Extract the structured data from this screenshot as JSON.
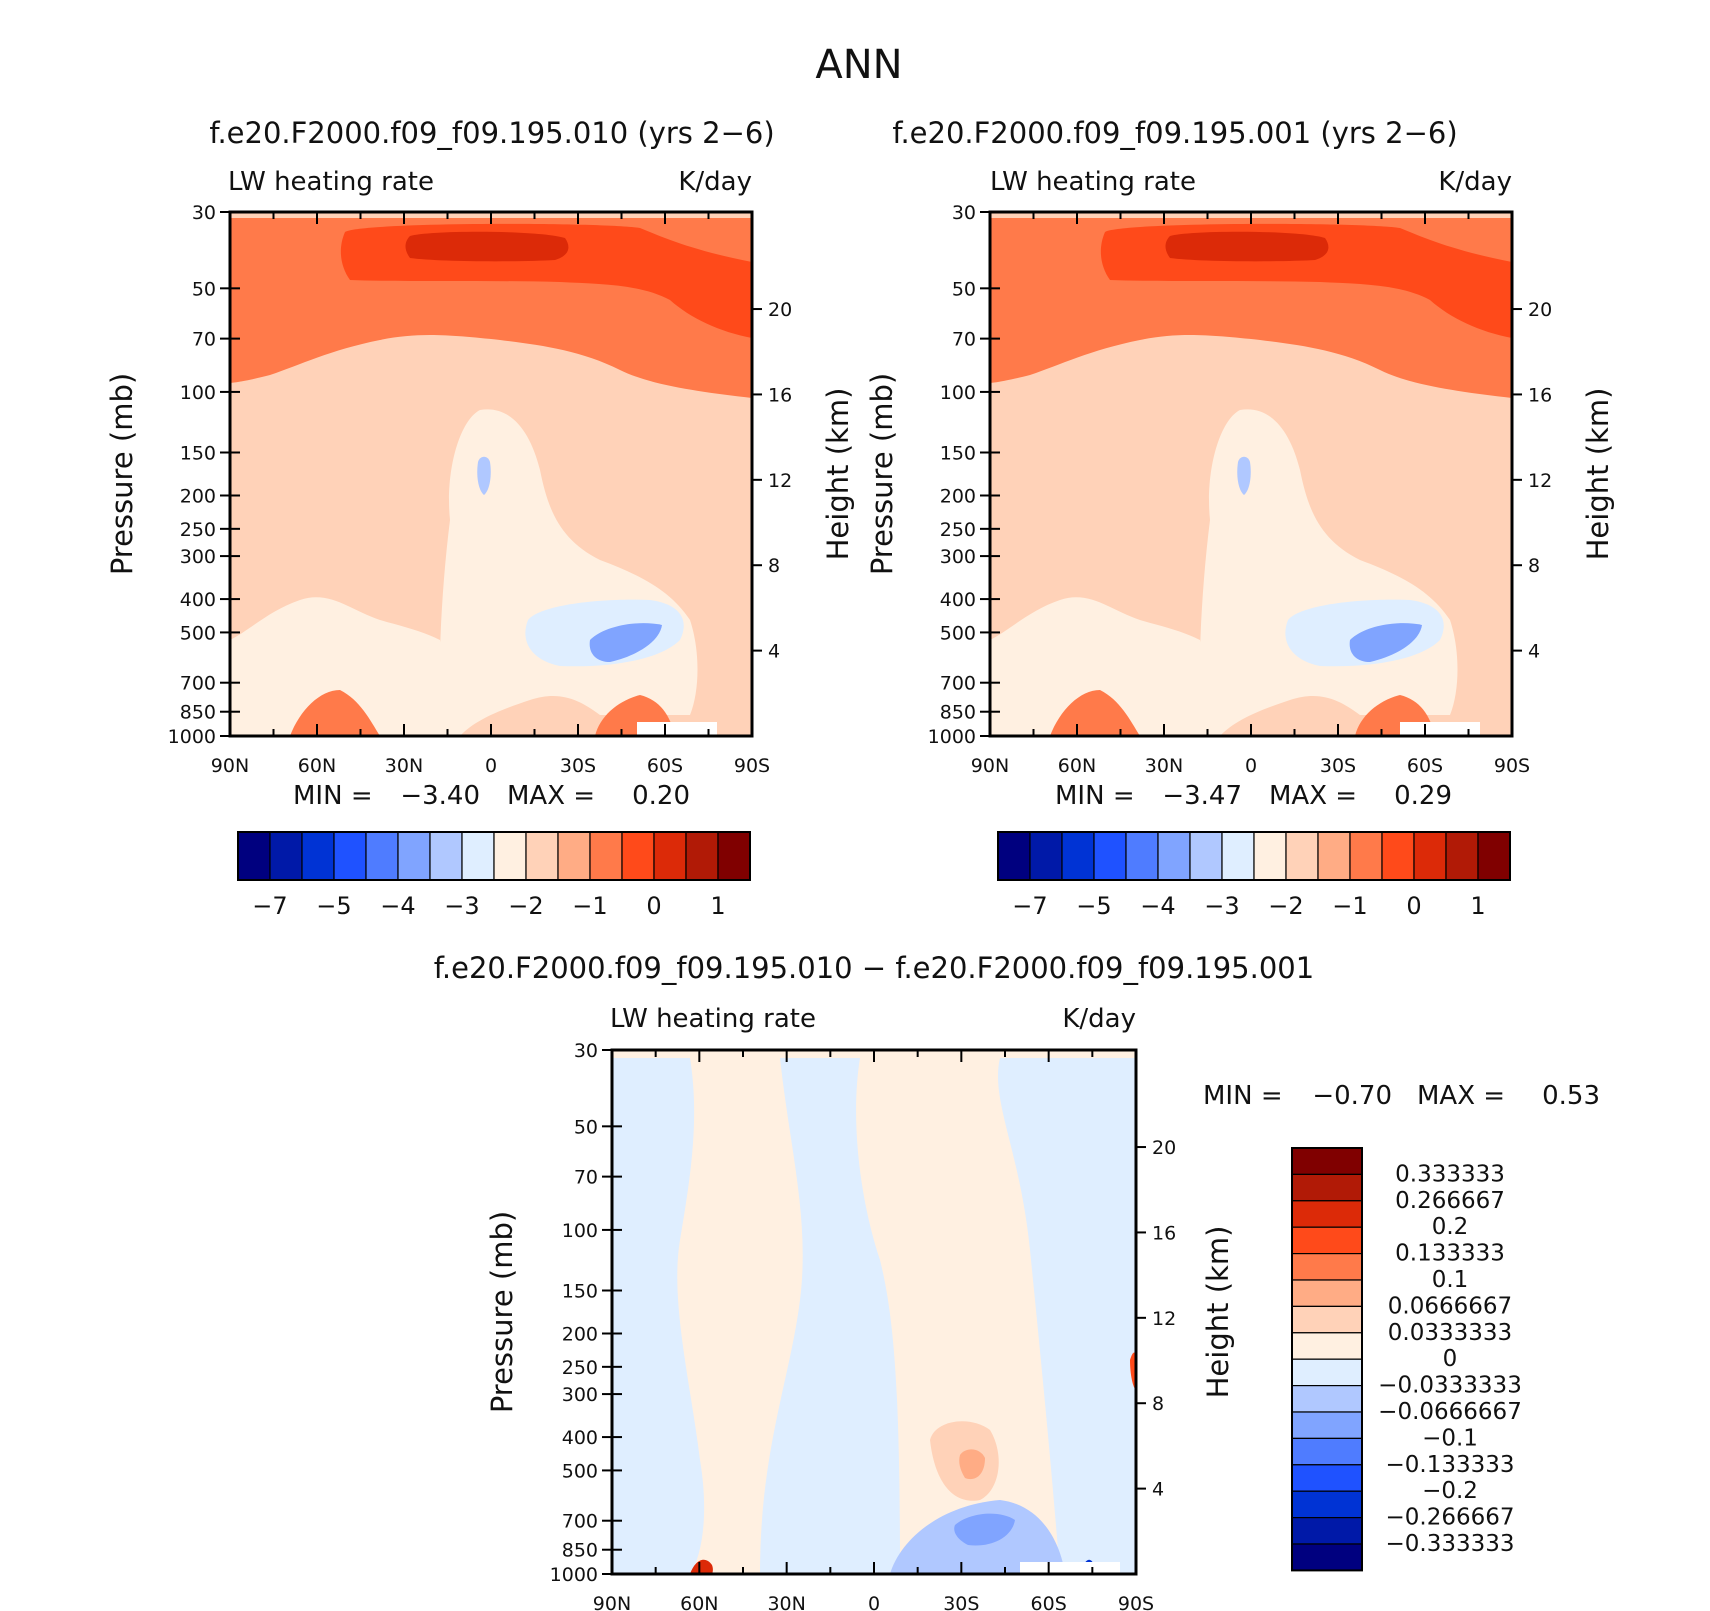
{
  "figure_title": "ANN",
  "colors": {
    "abs": [
      "#00007f",
      "#0019a8",
      "#0033d4",
      "#1f52ff",
      "#4f7cff",
      "#80a4ff",
      "#b0c8ff",
      "#dfeeff",
      "#fff0e1",
      "#ffd2b8",
      "#ffac85",
      "#ff7a4a",
      "#ff4a1a",
      "#dc2a08",
      "#b11a06",
      "#800000"
    ],
    "diff": [
      "#00007f",
      "#0019a8",
      "#0033d4",
      "#1f52ff",
      "#4f7cff",
      "#80a4ff",
      "#b0c8ff",
      "#dfeeff",
      "#fff0e1",
      "#ffd2b8",
      "#ffac85",
      "#ff7a4a",
      "#ff4a1a",
      "#dc2a08",
      "#b11a06",
      "#800000"
    ]
  },
  "panels": [
    {
      "title": "f.e20.F2000.f09_f09.195.010 (yrs 2−6)",
      "left_label": "LW heating rate",
      "right_label": "K/day",
      "stats": {
        "min_label": "MIN =",
        "min_value": "−3.40",
        "max_label": "MAX =",
        "max_value": "0.20"
      }
    },
    {
      "title": "f.e20.F2000.f09_f09.195.001 (yrs 2−6)",
      "left_label": "LW heating rate",
      "right_label": "K/day",
      "stats": {
        "min_label": "MIN =",
        "min_value": "−3.47",
        "max_label": "MAX =",
        "max_value": "0.29"
      }
    },
    {
      "title": "f.e20.F2000.f09_f09.195.010 − f.e20.F2000.f09_f09.195.001",
      "left_label": "LW heating rate",
      "right_label": "K/day",
      "stats": {
        "min_label": "MIN =",
        "min_value": "−0.70",
        "max_label": "MAX =",
        "max_value": "0.53"
      }
    }
  ],
  "axes": {
    "ylabel": "Pressure (mb)",
    "y2label": "Height (km)",
    "pressure_ticks": [
      "30",
      "50",
      "70",
      "100",
      "150",
      "200",
      "250",
      "300",
      "400",
      "500",
      "700",
      "850",
      "1000"
    ],
    "height_ticks": [
      "20",
      "16",
      "12",
      "8",
      "4"
    ],
    "lat_ticks": [
      "90N",
      "60N",
      "30N",
      "0",
      "30S",
      "60S",
      "90S"
    ]
  },
  "colorbar_abs": {
    "labels": [
      "−7",
      "−5",
      "−4",
      "−3",
      "−2",
      "−1",
      "0",
      "1"
    ]
  },
  "colorbar_diff": {
    "labels": [
      "0.333333",
      "0.266667",
      "0.2",
      "0.133333",
      "0.1",
      "0.0666667",
      "0.0333333",
      "0",
      "−0.0333333",
      "−0.0666667",
      "−0.1",
      "−0.133333",
      "−0.2",
      "−0.266667",
      "−0.333333"
    ]
  },
  "chart_data": [
    {
      "type": "heatmap",
      "title": "f.e20.F2000.f09_f09.195.010 (yrs 2−6)",
      "subtitle": "LW heating rate  K/day",
      "x_categories": [
        "90N",
        "60N",
        "30N",
        "0",
        "30S",
        "60S",
        "90S"
      ],
      "y_categories": [
        "30",
        "50",
        "70",
        "100",
        "150",
        "200",
        "250",
        "300",
        "400",
        "500",
        "700",
        "850",
        "1000"
      ],
      "xlim": [
        90,
        -90
      ],
      "ylim": [
        1000,
        30
      ],
      "y_scale": "log",
      "ylabel": "Pressure (mb)",
      "y2label": "Height (km)",
      "min": -3.4,
      "max": 0.2,
      "colorbar_levels": [
        -7,
        -5,
        -4,
        -3,
        -2,
        -1,
        0,
        1
      ]
    },
    {
      "type": "heatmap",
      "title": "f.e20.F2000.f09_f09.195.001 (yrs 2−6)",
      "subtitle": "LW heating rate  K/day",
      "x_categories": [
        "90N",
        "60N",
        "30N",
        "0",
        "30S",
        "60S",
        "90S"
      ],
      "y_categories": [
        "30",
        "50",
        "70",
        "100",
        "150",
        "200",
        "250",
        "300",
        "400",
        "500",
        "700",
        "850",
        "1000"
      ],
      "xlim": [
        90,
        -90
      ],
      "ylim": [
        1000,
        30
      ],
      "y_scale": "log",
      "ylabel": "Pressure (mb)",
      "y2label": "Height (km)",
      "min": -3.47,
      "max": 0.29,
      "colorbar_levels": [
        -7,
        -5,
        -4,
        -3,
        -2,
        -1,
        0,
        1
      ]
    },
    {
      "type": "heatmap",
      "title": "f.e20.F2000.f09_f09.195.010 − f.e20.F2000.f09_f09.195.001",
      "subtitle": "LW heating rate  K/day",
      "x_categories": [
        "90N",
        "60N",
        "30N",
        "0",
        "30S",
        "60S",
        "90S"
      ],
      "y_categories": [
        "30",
        "50",
        "70",
        "100",
        "150",
        "200",
        "250",
        "300",
        "400",
        "500",
        "700",
        "850",
        "1000"
      ],
      "xlim": [
        90,
        -90
      ],
      "ylim": [
        1000,
        30
      ],
      "y_scale": "log",
      "ylabel": "Pressure (mb)",
      "y2label": "Height (km)",
      "min": -0.7,
      "max": 0.53,
      "colorbar_levels": [
        0.333333,
        0.266667,
        0.2,
        0.133333,
        0.1,
        0.0666667,
        0.0333333,
        0,
        -0.0333333,
        -0.0666667,
        -0.1,
        -0.133333,
        -0.2,
        -0.266667,
        -0.333333
      ]
    }
  ]
}
